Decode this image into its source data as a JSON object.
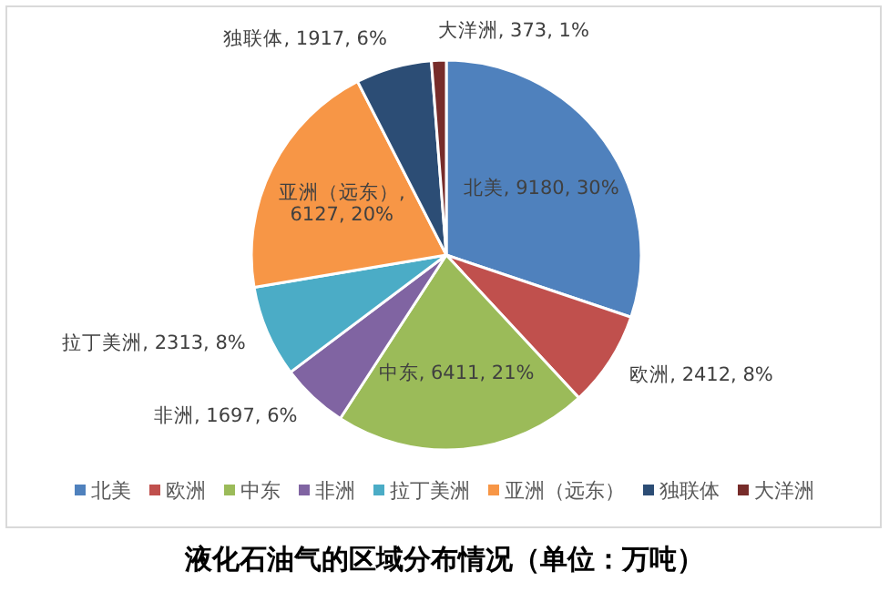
{
  "chart_data": {
    "type": "pie",
    "title": "液化石油气的区域分布情况（单位：万吨）",
    "categories": [
      "北美",
      "欧洲",
      "中东",
      "非洲",
      "拉丁美洲",
      "亚洲（远东）",
      "独联体",
      "大洋洲"
    ],
    "values": [
      9180,
      2412,
      6411,
      1697,
      2313,
      6127,
      1917,
      373
    ],
    "value_labels": [
      "北美, 9180, 30%",
      "欧洲, 2412, 8%",
      "中东, 6411, 21%",
      "非洲, 1697, 6%",
      "拉丁美洲, 2313, 8%",
      "亚洲（远东）, 6127, 20%",
      "独联体, 1917, 6%",
      "大洋洲, 373, 1%"
    ],
    "colors": [
      "#4f81bd",
      "#c0504d",
      "#9bbb59",
      "#8064a2",
      "#4bacc6",
      "#f79646",
      "#2c4d75",
      "#772c2a"
    ],
    "legend": "bottom"
  }
}
